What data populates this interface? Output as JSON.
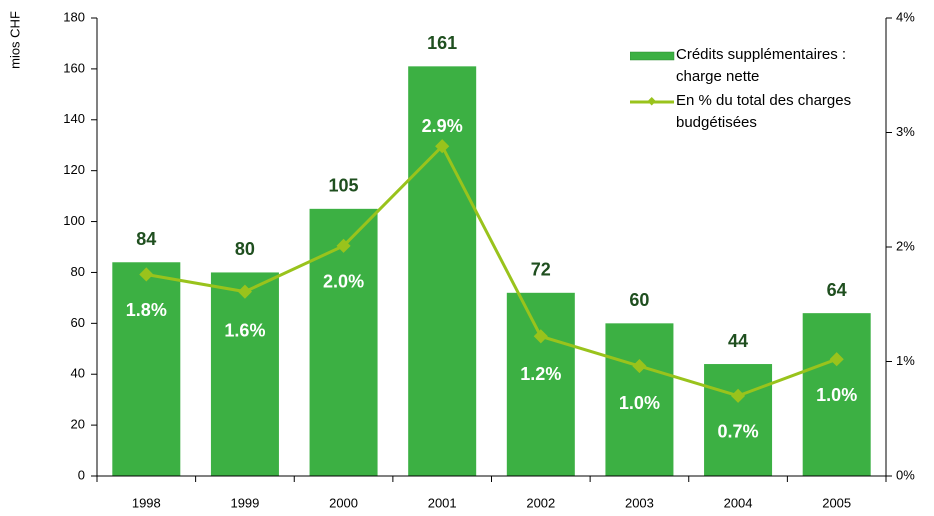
{
  "chart_data": {
    "type": "bar_line",
    "y_label": "mios CHF",
    "categories": [
      "1998",
      "1999",
      "2000",
      "2001",
      "2002",
      "2003",
      "2004",
      "2005"
    ],
    "series": [
      {
        "name": "Crédits supplémentaires : charge nette",
        "type": "bar",
        "color": "#3cb043",
        "values": [
          84,
          80,
          105,
          161,
          72,
          60,
          44,
          64
        ]
      },
      {
        "name": "En % du total des charges budgétisées",
        "type": "line",
        "axis": "y2",
        "color": "#99c31c",
        "values": [
          1.76,
          1.61,
          2.01,
          2.88,
          1.22,
          0.96,
          0.7,
          1.02
        ],
        "value_labels": [
          "1.8%",
          "1.6%",
          "2.0%",
          "2.9%",
          "1.2%",
          "1.0%",
          "0.7%",
          "1.0%"
        ]
      }
    ],
    "ylim": [
      0,
      180
    ],
    "yticks": [
      0,
      20,
      40,
      60,
      80,
      100,
      120,
      140,
      160,
      180
    ],
    "y2lim": [
      0,
      4
    ],
    "y2ticks": [
      {
        "value": 0,
        "label": "0%"
      },
      {
        "value": 1,
        "label": "1%"
      },
      {
        "value": 2,
        "label": "2%"
      },
      {
        "value": 3,
        "label": "3%"
      },
      {
        "value": 4,
        "label": "4%"
      }
    ]
  }
}
